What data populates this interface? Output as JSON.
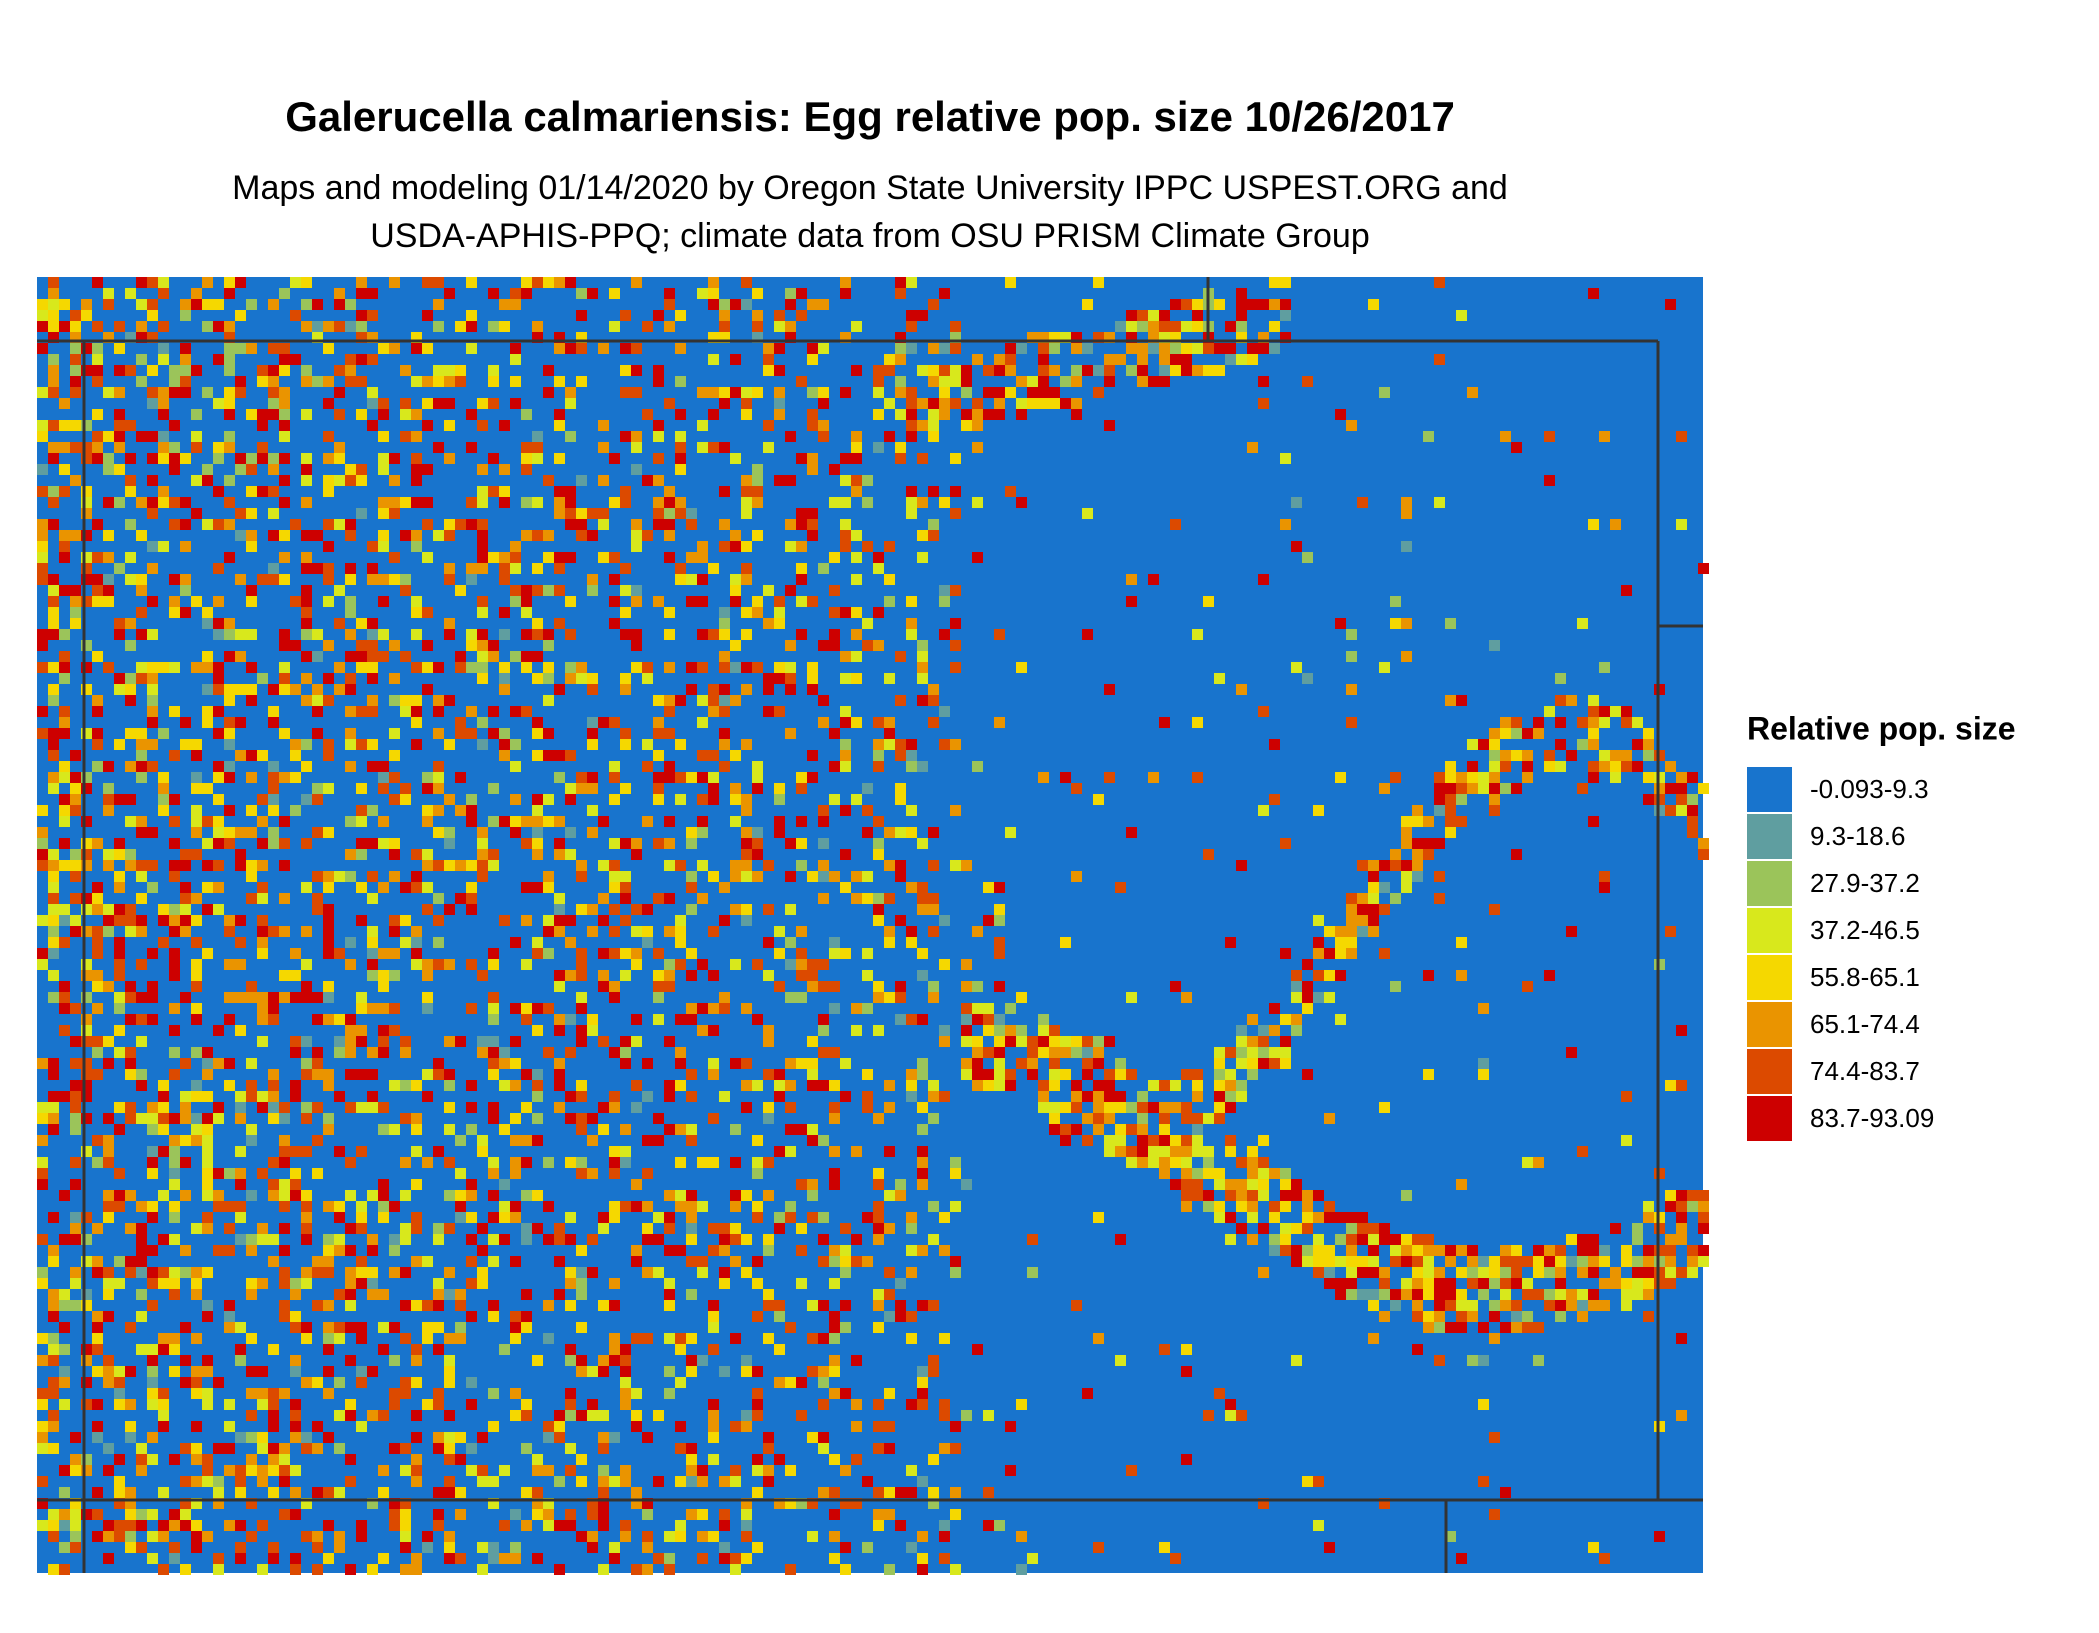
{
  "title": "Galerucella calmariensis: Egg relative pop. size 10/26/2017",
  "subtitle": [
    "Maps and modeling 01/14/2020 by Oregon State University IPPC USPEST.ORG and",
    "USDA-APHIS-PPQ; climate data from OSU PRISM Climate Group"
  ],
  "legend": {
    "title": "Relative pop. size",
    "items": [
      {
        "label": "-0.093-9.3",
        "color": "#1874cd"
      },
      {
        "label": "9.3-18.6",
        "color": "#5f9ea0"
      },
      {
        "label": "27.9-37.2",
        "color": "#9bc45a"
      },
      {
        "label": "37.2-46.5",
        "color": "#d8e81c"
      },
      {
        "label": "55.8-65.1",
        "color": "#f5d800"
      },
      {
        "label": "65.1-74.4",
        "color": "#ea9400"
      },
      {
        "label": "74.4-83.7",
        "color": "#dc4a00"
      },
      {
        "label": "83.7-93.09",
        "color": "#cd0000"
      }
    ]
  }
}
